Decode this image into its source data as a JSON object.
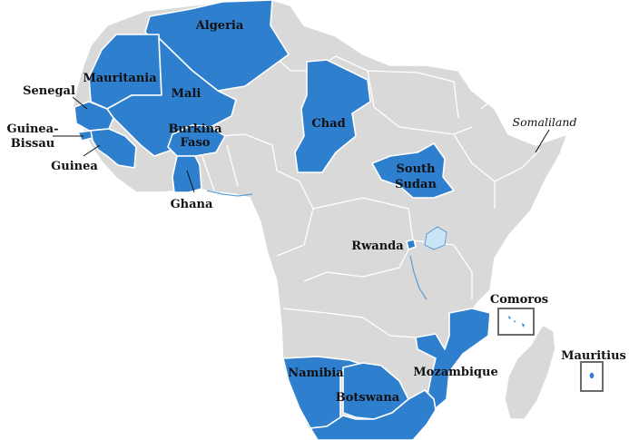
{
  "map": {
    "colors": {
      "highlighted": "#2f7fcf",
      "other": "#d9d9d9",
      "border": "#ffffff",
      "lake": "#c9e4f7"
    },
    "labels": {
      "algeria": "Algeria",
      "mauritania": "Mauritania",
      "mali": "Mali",
      "senegal": "Senegal",
      "guinea_bissau_1": "Guinea-",
      "guinea_bissau_2": "Bissau",
      "guinea": "Guinea",
      "burkina_faso_1": "Burkina",
      "burkina_faso_2": "Faso",
      "ghana": "Ghana",
      "chad": "Chad",
      "south_sudan_1": "South",
      "south_sudan_2": "Sudan",
      "somaliland": "Somaliland",
      "rwanda": "Rwanda",
      "comoros": "Comoros",
      "mauritius": "Mauritius",
      "mozambique": "Mozambique",
      "namibia": "Namibia",
      "botswana": "Botswana"
    }
  }
}
